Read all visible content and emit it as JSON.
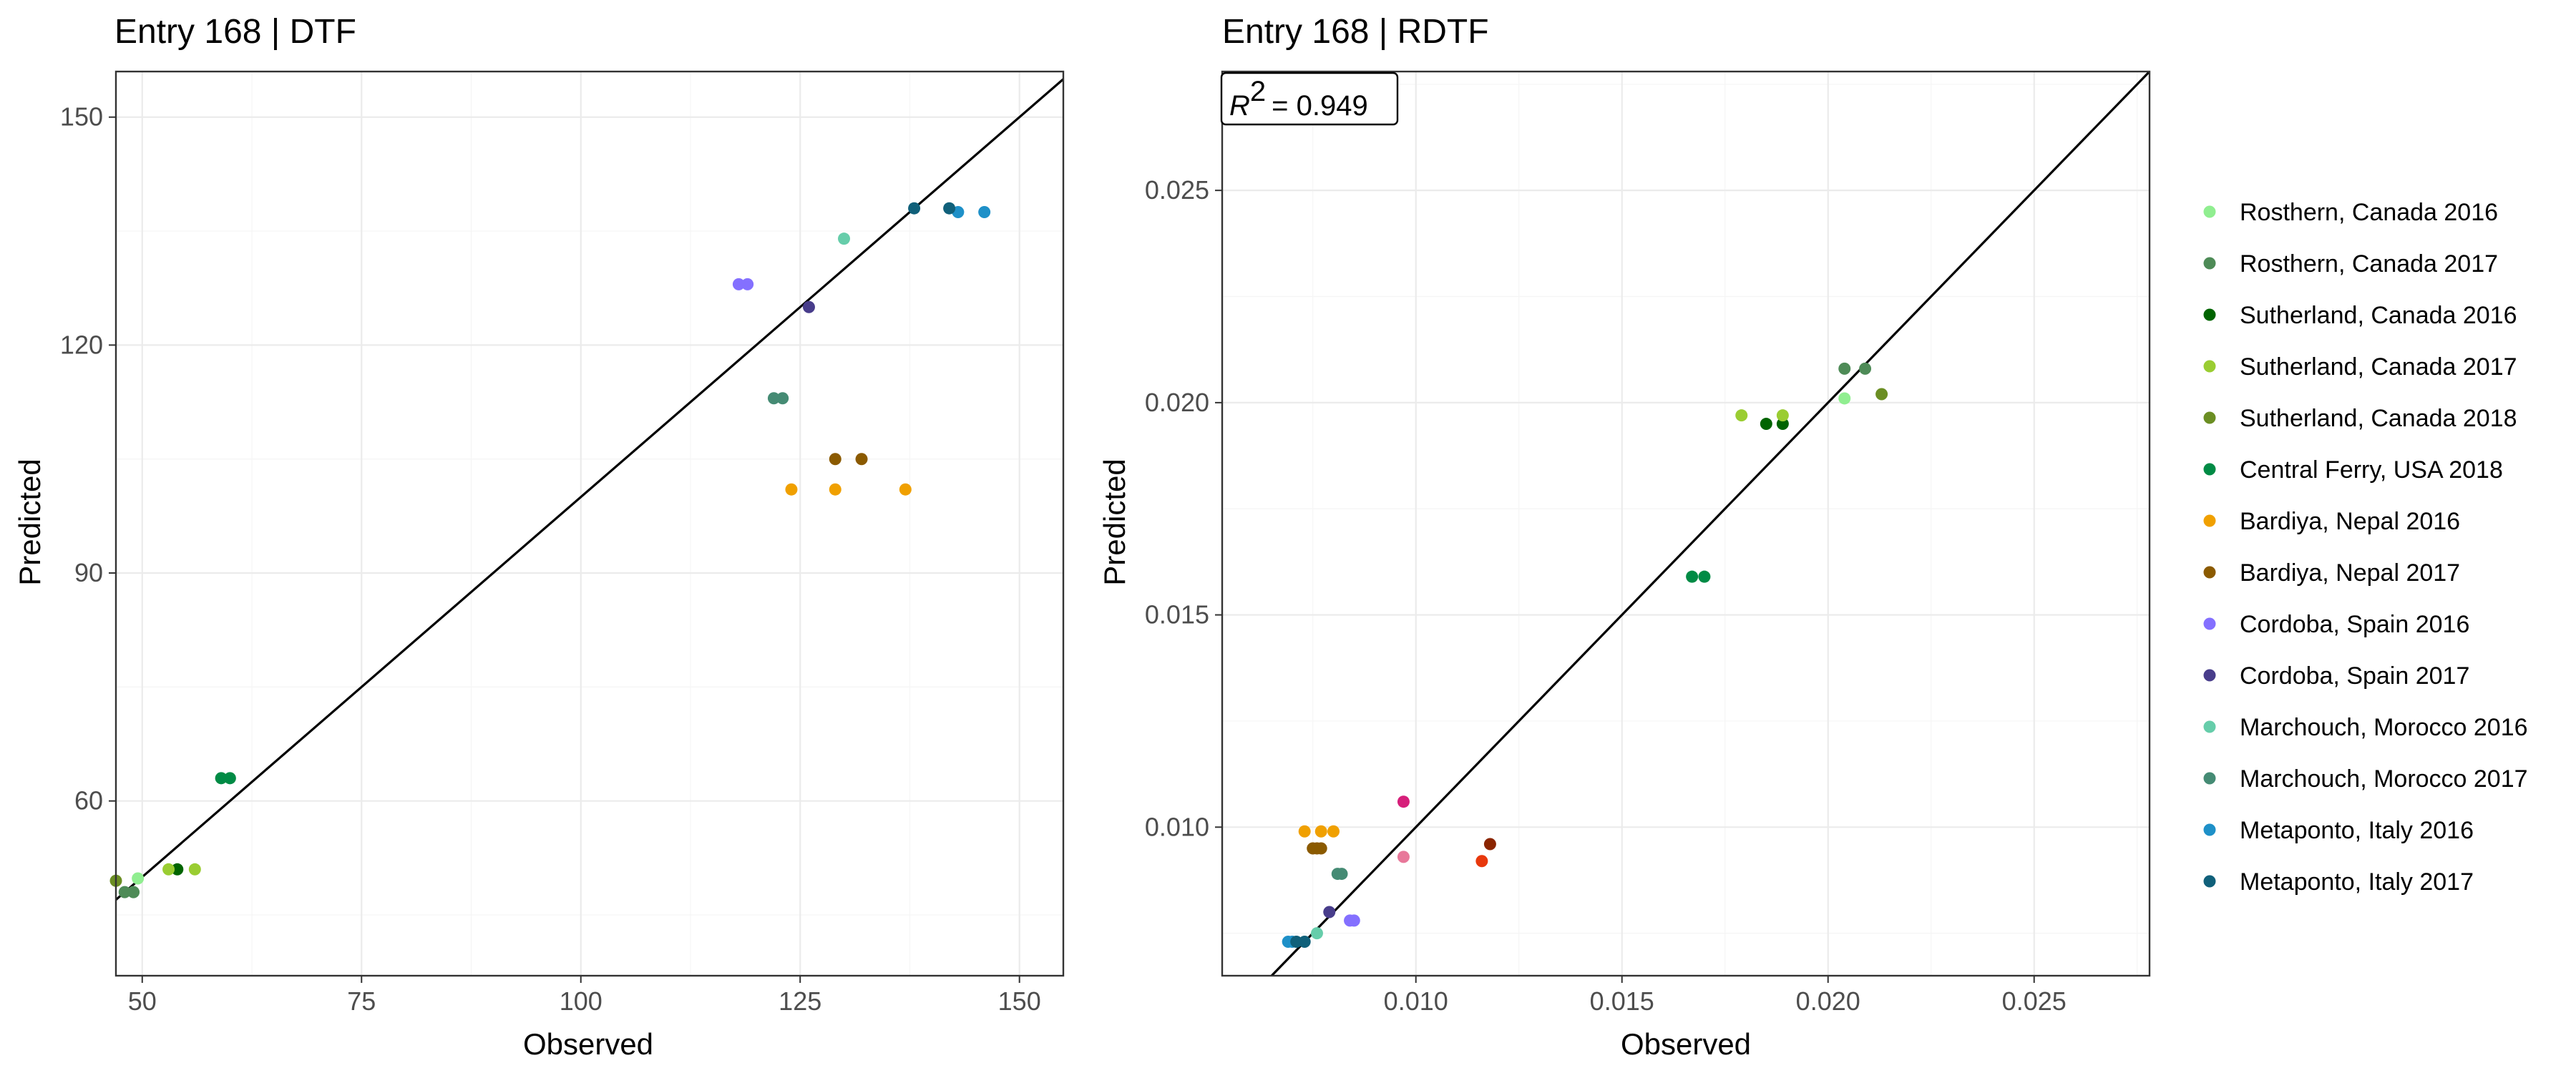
{
  "chart_data": [
    {
      "type": "scatter",
      "title": "Entry 168 | DTF",
      "xlabel": "Observed",
      "ylabel": "Predicted",
      "xlim": [
        47,
        155
      ],
      "ylim": [
        37,
        156
      ],
      "xticks": [
        50,
        75,
        100,
        125,
        150
      ],
      "yticks": [
        60,
        90,
        120,
        150
      ],
      "xtick_labels": [
        "50",
        "75",
        "100",
        "125",
        "150"
      ],
      "ytick_labels": [
        "60",
        "90",
        "120",
        "150"
      ],
      "reference_line": "y = x",
      "grid": true,
      "series": [
        {
          "name": "Rosthern, Canada 2016",
          "color": "#90ee90",
          "points": [
            [
              49.5,
              49.8
            ],
            [
              49,
              48
            ]
          ]
        },
        {
          "name": "Rosthern, Canada 2017",
          "color": "#4e8b57",
          "points": [
            [
              48,
              48
            ],
            [
              49,
              48
            ]
          ]
        },
        {
          "name": "Sutherland, Canada 2016",
          "color": "#006400",
          "points": [
            [
              54,
              51
            ]
          ]
        },
        {
          "name": "Sutherland, Canada 2017",
          "color": "#9acd32",
          "points": [
            [
              53,
              51
            ],
            [
              56,
              51
            ]
          ]
        },
        {
          "name": "Sutherland, Canada 2018",
          "color": "#6b8e23",
          "points": [
            [
              47,
              49.5
            ]
          ]
        },
        {
          "name": "Central Ferry, USA 2018",
          "color": "#008b45",
          "points": [
            [
              59,
              63
            ],
            [
              60,
              63
            ]
          ]
        },
        {
          "name": "Bardiya, Nepal 2016",
          "color": "#f0a000",
          "points": [
            [
              124,
              101
            ],
            [
              129,
              101
            ],
            [
              137,
              101
            ]
          ]
        },
        {
          "name": "Bardiya, Nepal 2017",
          "color": "#8b5a00",
          "points": [
            [
              129,
              105
            ],
            [
              132,
              105
            ]
          ]
        },
        {
          "name": "Cordoba, Spain 2016",
          "color": "#8470ff",
          "points": [
            [
              118,
              128
            ],
            [
              119,
              128
            ]
          ]
        },
        {
          "name": "Cordoba, Spain 2017",
          "color": "#483d8b",
          "points": [
            [
              126,
              125
            ]
          ]
        },
        {
          "name": "Marchouch, Morocco 2016",
          "color": "#66cdaa",
          "points": [
            [
              130,
              134
            ]
          ]
        },
        {
          "name": "Marchouch, Morocco 2017",
          "color": "#458b74",
          "points": [
            [
              122,
              113
            ],
            [
              123,
              113
            ]
          ]
        },
        {
          "name": "Metaponto, Italy 2016",
          "color": "#1e90c8",
          "points": [
            [
              143,
              137.5
            ],
            [
              146,
              137.5
            ]
          ]
        },
        {
          "name": "Metaponto, Italy 2017",
          "color": "#10607a",
          "points": [
            [
              138,
              138
            ],
            [
              142,
              138
            ]
          ]
        }
      ]
    },
    {
      "type": "scatter",
      "title": "Entry 168 | RDTF",
      "xlabel": "Observed",
      "ylabel": "Predicted",
      "xlim": [
        0.0053,
        0.0278
      ],
      "ylim": [
        0.0065,
        0.0278
      ],
      "xticks": [
        0.01,
        0.015,
        0.02,
        0.025
      ],
      "yticks": [
        0.01,
        0.015,
        0.02,
        0.025
      ],
      "xtick_labels": [
        "0.010",
        "0.015",
        "0.020",
        "0.025"
      ],
      "ytick_labels": [
        "0.010",
        "0.015",
        "0.020",
        "0.025"
      ],
      "reference_line": "y = x",
      "grid": true,
      "annotation": {
        "r2_symbol": "R",
        "r2_exponent": "2",
        "r2_value": "= 0.949"
      },
      "series": [
        {
          "name": "Rosthern, Canada 2016",
          "color": "#90ee90",
          "points": [
            [
              0.0204,
              0.0201
            ]
          ]
        },
        {
          "name": "Rosthern, Canada 2017",
          "color": "#4e8b57",
          "points": [
            [
              0.0204,
              0.0208
            ],
            [
              0.0209,
              0.0208
            ]
          ]
        },
        {
          "name": "Sutherland, Canada 2016",
          "color": "#006400",
          "points": [
            [
              0.0185,
              0.0195
            ],
            [
              0.0189,
              0.0195
            ]
          ]
        },
        {
          "name": "Sutherland, Canada 2017",
          "color": "#9acd32",
          "points": [
            [
              0.0179,
              0.0197
            ],
            [
              0.0189,
              0.0197
            ]
          ]
        },
        {
          "name": "Sutherland, Canada 2018",
          "color": "#6b8e23",
          "points": [
            [
              0.0213,
              0.0202
            ]
          ]
        },
        {
          "name": "Central Ferry, USA 2018",
          "color": "#008b45",
          "points": [
            [
              0.0167,
              0.0159
            ],
            [
              0.017,
              0.0159
            ]
          ]
        },
        {
          "name": "Bardiya, Nepal 2016",
          "color": "#f0a000",
          "points": [
            [
              0.0073,
              0.0099
            ],
            [
              0.0077,
              0.0099
            ],
            [
              0.008,
              0.0099
            ]
          ]
        },
        {
          "name": "Bardiya, Nepal 2017",
          "color": "#8b5a00",
          "points": [
            [
              0.0075,
              0.0095
            ],
            [
              0.0076,
              0.0095
            ],
            [
              0.0077,
              0.0095
            ]
          ]
        },
        {
          "name": "Cordoba, Spain 2016",
          "color": "#8470ff",
          "points": [
            [
              0.0084,
              0.0078
            ],
            [
              0.0085,
              0.0078
            ]
          ]
        },
        {
          "name": "Cordoba, Spain 2017",
          "color": "#483d8b",
          "points": [
            [
              0.0079,
              0.008
            ]
          ]
        },
        {
          "name": "Marchouch, Morocco 2016",
          "color": "#66cdaa",
          "points": [
            [
              0.0076,
              0.0075
            ]
          ]
        },
        {
          "name": "Marchouch, Morocco 2017",
          "color": "#458b74",
          "points": [
            [
              0.0081,
              0.0089
            ],
            [
              0.0082,
              0.0089
            ]
          ]
        },
        {
          "name": "Metaponto, Italy 2016",
          "color": "#1e90c8",
          "points": [
            [
              0.0069,
              0.0073
            ],
            [
              0.007,
              0.0073
            ]
          ]
        },
        {
          "name": "Metaponto, Italy 2017",
          "color": "#10607a",
          "points": [
            [
              0.0071,
              0.0073
            ],
            [
              0.0073,
              0.0073
            ]
          ]
        },
        {
          "name": "",
          "color": "#d61f7a",
          "points": [
            [
              0.0097,
              0.0106
            ]
          ]
        },
        {
          "name": "",
          "color": "#e8789a",
          "points": [
            [
              0.0097,
              0.0093
            ]
          ]
        },
        {
          "name": "",
          "color": "#e8380c",
          "points": [
            [
              0.0116,
              0.0092
            ]
          ]
        },
        {
          "name": "",
          "color": "#8b2500",
          "points": [
            [
              0.0118,
              0.0096
            ]
          ]
        }
      ]
    }
  ],
  "legend": {
    "placement": "right",
    "entries": [
      {
        "label": "Rosthern, Canada 2016",
        "color": "#90ee90"
      },
      {
        "label": "Rosthern, Canada 2017",
        "color": "#4e8b57"
      },
      {
        "label": "Sutherland, Canada 2016",
        "color": "#006400"
      },
      {
        "label": "Sutherland, Canada 2017",
        "color": "#9acd32"
      },
      {
        "label": "Sutherland, Canada 2018",
        "color": "#6b8e23"
      },
      {
        "label": "Central Ferry, USA 2018",
        "color": "#008b45"
      },
      {
        "label": "Bardiya, Nepal 2016",
        "color": "#f0a000"
      },
      {
        "label": "Bardiya, Nepal 2017",
        "color": "#8b5a00"
      },
      {
        "label": "Cordoba, Spain 2016",
        "color": "#8470ff"
      },
      {
        "label": "Cordoba, Spain 2017",
        "color": "#483d8b"
      },
      {
        "label": "Marchouch, Morocco 2016",
        "color": "#66cdaa"
      },
      {
        "label": "Marchouch, Morocco 2017",
        "color": "#458b74"
      },
      {
        "label": "Metaponto, Italy 2016",
        "color": "#1e90c8"
      },
      {
        "label": "Metaponto, Italy 2017",
        "color": "#10607a"
      }
    ]
  }
}
